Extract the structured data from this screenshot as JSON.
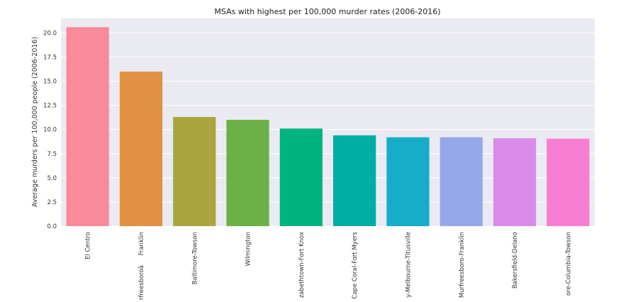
{
  "chart_data": {
    "type": "bar",
    "title": "MSAs with highest per 100,000 murder rates (2006-2016)",
    "xlabel": "",
    "ylabel": "Average murders per 100,000 people (2006-2016)",
    "ylim": [
      0,
      21.5
    ],
    "yticks": [
      "0.0",
      "2.5",
      "5.0",
      "7.5",
      "10.0",
      "12.5",
      "15.0",
      "17.5",
      "20.0"
    ],
    "categories": [
      "El Centro",
      "rfreesboroâFranklin",
      "Baltimore-Towson",
      "Wilmington",
      "zabethtown-Fort Knox",
      "Cape Coral-Fort Myers",
      "y-Melbourne-Titusville",
      "Murfreesboro-Franklin",
      "Bakersfield-Delano",
      "ore-Columbia-Towson"
    ],
    "values": [
      20.6,
      16.0,
      11.3,
      11.0,
      10.1,
      9.4,
      9.2,
      9.2,
      9.1,
      9.05
    ],
    "colors": [
      "#f88a9a",
      "#e09142",
      "#aaa53f",
      "#6cb146",
      "#00b47f",
      "#00aea5",
      "#17adc8",
      "#94a8ea",
      "#d98be9",
      "#f87ed1"
    ],
    "background": "#eaeaf2",
    "grid": true,
    "legend": "none"
  }
}
